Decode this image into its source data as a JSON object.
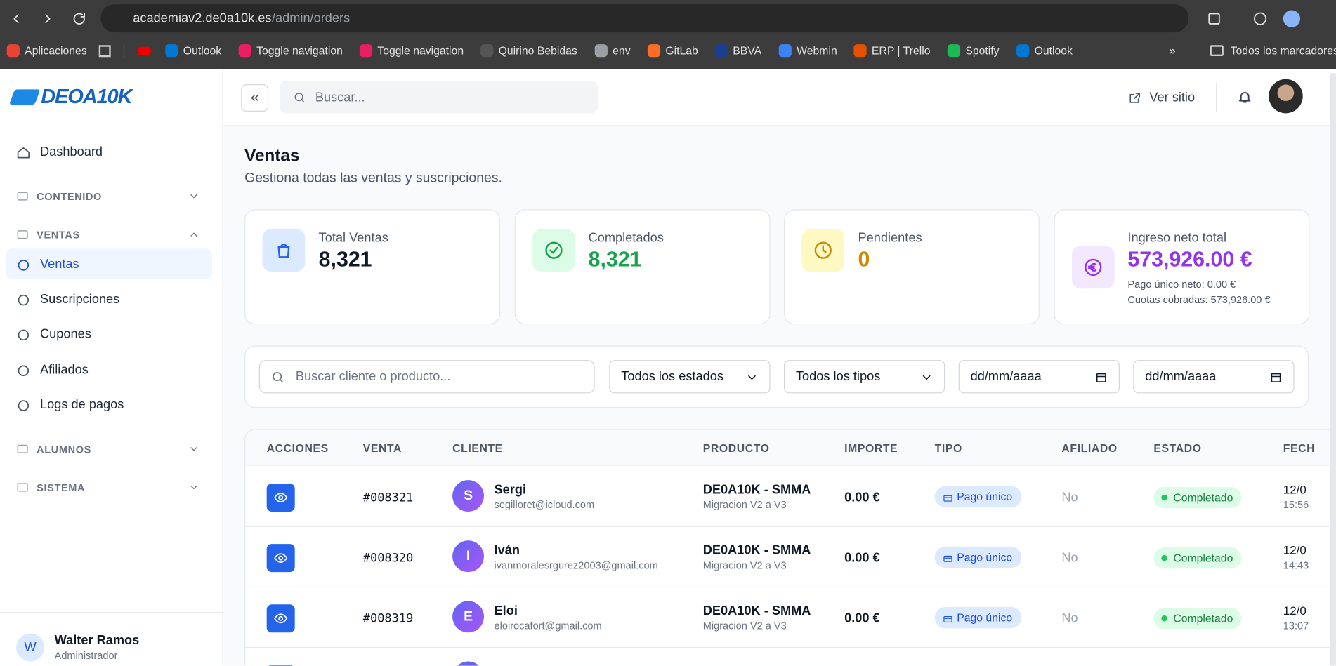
{
  "browser": {
    "url_host": "academiav2.de0a10k.es",
    "url_path": "/admin/orders",
    "bookmarks": [
      "Aplicaciones",
      "Outlook",
      "Toggle navigation",
      "Toggle navigation",
      "Quirino Bebidas",
      "env",
      "GitLab",
      "BBVA",
      "Webmin",
      "ERP | Trello",
      "Spotify",
      "Outlook"
    ],
    "all_bookmarks": "Todos los marcadores"
  },
  "sidebar": {
    "logo": "DEOA10K",
    "dashboard": "Dashboard",
    "sections": [
      {
        "title": "CONTENIDO"
      },
      {
        "title": "VENTAS",
        "items": [
          "Ventas",
          "Suscripciones",
          "Cupones",
          "Afiliados",
          "Logs de pagos"
        ]
      },
      {
        "title": "ALUMNOS"
      },
      {
        "title": "SISTEMA"
      }
    ],
    "user": {
      "initial": "W",
      "name": "Walter Ramos",
      "role": "Administrador"
    }
  },
  "header": {
    "search": "Buscar...",
    "view_site": "Ver sitio"
  },
  "page": {
    "title": "Ventas",
    "subtitle": "Gestiona todas las ventas y suscripciones."
  },
  "stats": [
    {
      "label": "Total Ventas",
      "value": "8,321"
    },
    {
      "label": "Completados",
      "value": "8,321"
    },
    {
      "label": "Pendientes",
      "value": "0"
    },
    {
      "label": "Ingreso neto total",
      "value": "573,926.00 €",
      "details": [
        "Pago único neto: 0.00 €",
        "Cuotas cobradas: 573,926.00 €"
      ]
    }
  ],
  "filters": {
    "search": "Buscar cliente o producto...",
    "status": "Todos los estados",
    "type": "Todos los tipos",
    "date_from": "dd/mm/aaaa",
    "date_to": "dd/mm/aaaa"
  },
  "table": {
    "columns": [
      "ACCIONES",
      "VENTA",
      "CLIENTE",
      "PRODUCTO",
      "IMPORTE",
      "TIPO",
      "AFILIADO",
      "ESTADO",
      "FECH"
    ],
    "rows": [
      {
        "order": "#008321",
        "initial": "S",
        "name": "Sergi",
        "email": "segilloret@icloud.com",
        "product": "DE0A10K - SMMA",
        "variant": "Migracion V2 a V3",
        "amount": "0.00 €",
        "type": "Pago único",
        "affiliate": "No",
        "status": "Completado",
        "date": "12/0",
        "time": "15:56"
      },
      {
        "order": "#008320",
        "initial": "I",
        "name": "Iván",
        "email": "ivanmoralesrgurez2003@gmail.com",
        "product": "DE0A10K - SMMA",
        "variant": "Migracion V2 a V3",
        "amount": "0.00 €",
        "type": "Pago único",
        "affiliate": "No",
        "status": "Completado",
        "date": "12/0",
        "time": "14:43"
      },
      {
        "order": "#008319",
        "initial": "E",
        "name": "Eloi",
        "email": "eloirocafort@gmail.com",
        "product": "DE0A10K - SMMA",
        "variant": "Migracion V2 a V3",
        "amount": "0.00 €",
        "type": "Pago único",
        "affiliate": "No",
        "status": "Completado",
        "date": "12/0",
        "time": "13:07"
      }
    ]
  }
}
